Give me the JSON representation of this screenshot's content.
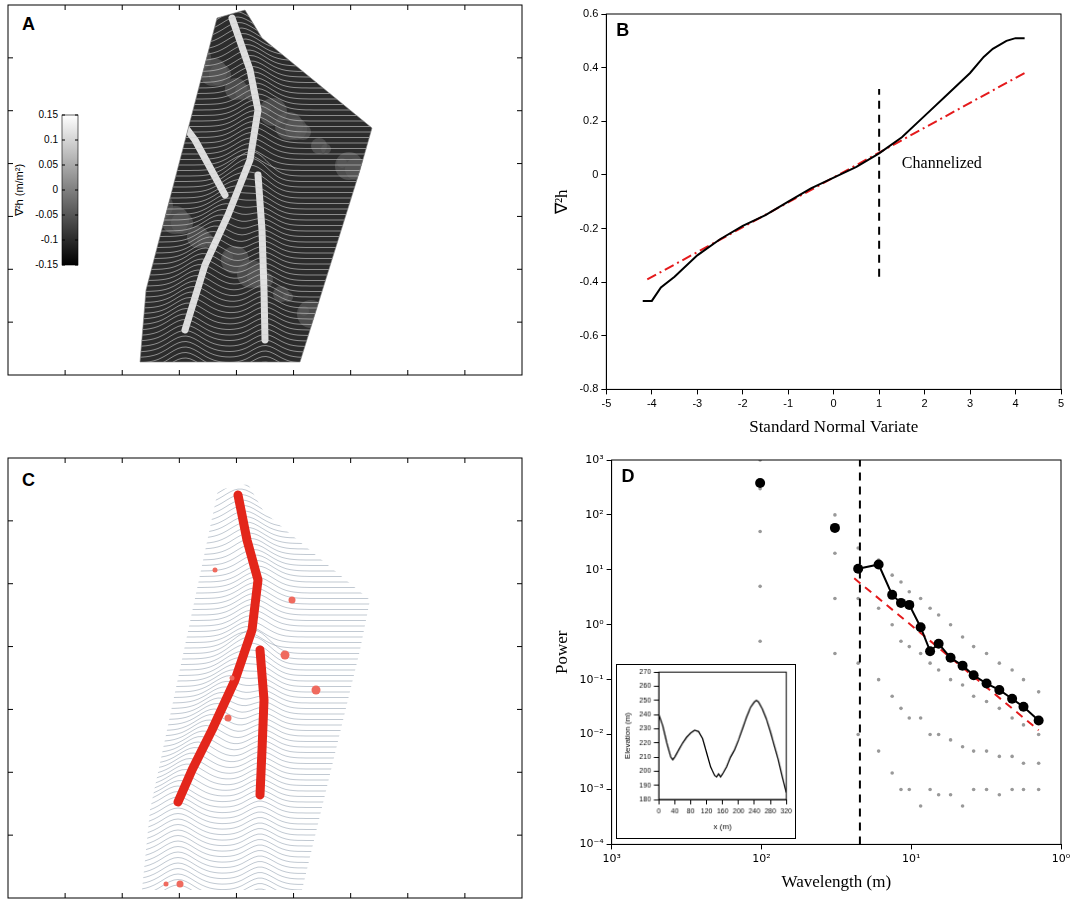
{
  "chart_data": [
    {
      "type": "line",
      "panel": "B",
      "xlabel": "Standard Normal Variate",
      "ylabel": "∇²h",
      "xlim": [
        -5,
        5
      ],
      "xticks": [
        -5,
        -4,
        -3,
        -2,
        -1,
        0,
        1,
        2,
        3,
        4,
        5
      ],
      "ylim": [
        -0.8,
        0.6
      ],
      "yticks": [
        -0.8,
        -0.6,
        -0.4,
        -0.2,
        0,
        0.2,
        0.4,
        0.6
      ],
      "grid": false,
      "series": [
        {
          "type": "line",
          "color": "#000000",
          "line_style": "solid",
          "x": [
            -4.2,
            -4.0,
            -3.8,
            -3.5,
            -3.0,
            -2.5,
            -2.0,
            -1.5,
            -1.0,
            -0.5,
            0,
            0.5,
            1.0,
            1.5,
            2.0,
            2.5,
            3.0,
            3.3,
            3.5,
            3.8,
            4.0,
            4.2
          ],
          "values": [
            -0.47,
            -0.47,
            -0.42,
            -0.38,
            -0.3,
            -0.24,
            -0.19,
            -0.15,
            -0.1,
            -0.05,
            -0.01,
            0.03,
            0.08,
            0.14,
            0.22,
            0.3,
            0.38,
            0.44,
            0.47,
            0.5,
            0.51,
            0.51
          ]
        },
        {
          "type": "line",
          "color": "#e41a1c",
          "line_style": "dashdot",
          "x": [
            -4.1,
            4.2
          ],
          "values": [
            -0.39,
            0.38
          ]
        },
        {
          "type": "line",
          "color": "#000000",
          "line_style": "dashed",
          "x": [
            1,
            1
          ],
          "values": [
            -0.38,
            0.32
          ]
        }
      ],
      "annotations": [
        {
          "text": "Channelized",
          "x": 1.5,
          "y": 0.04
        }
      ]
    },
    {
      "type": "scatter",
      "panel": "D",
      "xlabel": "Wavelength (m)",
      "ylabel": "Power",
      "log": true,
      "grid": false,
      "xlim": [
        1000,
        1
      ],
      "xticks": [
        {
          "value": 1000,
          "label": "10³"
        },
        {
          "value": 100,
          "label": "10²"
        },
        {
          "value": 10,
          "label": "10¹"
        },
        {
          "value": 1,
          "label": "10⁰"
        }
      ],
      "ylim": [
        0.0001,
        1000
      ],
      "yticks": [
        {
          "value": 0.0001,
          "label": "10⁻⁴"
        },
        {
          "value": 0.001,
          "label": "10⁻³"
        },
        {
          "value": 0.01,
          "label": "10⁻²"
        },
        {
          "value": 0.1,
          "label": "10⁻¹"
        },
        {
          "value": 1,
          "label": "10⁰"
        },
        {
          "value": 10,
          "label": "10¹"
        },
        {
          "value": 100,
          "label": "10²"
        },
        {
          "value": 1000,
          "label": "10³"
        }
      ],
      "series": [
        {
          "type": "scatter",
          "color": "#999999",
          "marker": "circle",
          "x": [
            102,
            102,
            102,
            102,
            102,
            32.3,
            32.3,
            32.3,
            32.3,
            22.6,
            22.6,
            22.6,
            22.6,
            16.5,
            16.5,
            16.5,
            16.5,
            13.4,
            13.4,
            13.4,
            13.4,
            11.7,
            11.7,
            11.7,
            11.7,
            10.3,
            10.3,
            10.3,
            10.3,
            8.65,
            8.65,
            8.65,
            8.65,
            7.48,
            7.48,
            7.48,
            7.48,
            6.56,
            6.56,
            6.56,
            6.56,
            5.46,
            5.46,
            5.46,
            5.46,
            4.54,
            4.54,
            4.54,
            4.54,
            3.83,
            3.83,
            3.83,
            3.83,
            3.14,
            3.14,
            3.14,
            3.14,
            2.58,
            2.58,
            2.58,
            2.58,
            2.12,
            2.12,
            2.12,
            2.12,
            1.78,
            1.78,
            1.78,
            1.78,
            1.41,
            1.41,
            1.41,
            1.41
          ],
          "values": [
            1000,
            300,
            50,
            5,
            0.5,
            100,
            20,
            3,
            0.3,
            25,
            3,
            0.2,
            0.01,
            15,
            2,
            0.1,
            0.005,
            8,
            1,
            0.05,
            0.002,
            6,
            0.5,
            0.03,
            0.001,
            4,
            0.4,
            0.02,
            0.001,
            3,
            0.3,
            0.02,
            0.0005,
            2,
            0.2,
            0.01,
            0.001,
            1.5,
            0.15,
            0.01,
            0.0008,
            1,
            0.1,
            0.008,
            0.0008,
            0.6,
            0.08,
            0.006,
            0.0005,
            0.4,
            0.05,
            0.005,
            0.001,
            0.3,
            0.04,
            0.005,
            0.001,
            0.2,
            0.03,
            0.004,
            0.0008,
            0.15,
            0.02,
            0.004,
            0.001,
            0.1,
            0.015,
            0.003,
            0.001,
            0.06,
            0.01,
            0.003,
            0.001
          ]
        },
        {
          "type": "line",
          "color": "#000000",
          "marker": "circle",
          "line_style": "none",
          "x": [
            102,
            32.3
          ],
          "values": [
            380,
            58
          ]
        },
        {
          "type": "line",
          "color": "#000000",
          "marker": "circle",
          "line_style": "solid",
          "x": [
            22.6,
            16.5,
            13.4,
            11.7,
            10.3,
            8.65,
            7.48,
            6.56,
            5.46,
            4.54,
            3.83,
            3.14,
            2.58,
            2.12,
            1.78,
            1.41
          ],
          "values": [
            10.5,
            12.5,
            3.5,
            2.5,
            2.3,
            0.9,
            0.33,
            0.45,
            0.25,
            0.18,
            0.12,
            0.085,
            0.065,
            0.045,
            0.032,
            0.018
          ]
        },
        {
          "type": "line",
          "color": "#e41a1c",
          "line_style": "dashed",
          "x": [
            24,
            1.41
          ],
          "values": [
            7,
            0.012
          ]
        },
        {
          "type": "line",
          "color": "#000000",
          "line_style": "dashed",
          "x": [
            22,
            22
          ],
          "values": [
            0.0001,
            1000
          ]
        }
      ],
      "inset": {
        "type": "line",
        "xlabel": "x (m)",
        "ylabel": "Elevation (m)",
        "color": "#000000",
        "xlim": [
          0,
          320
        ],
        "xticks": [
          0,
          40,
          80,
          120,
          160,
          200,
          240,
          280,
          320
        ],
        "ylim": [
          180,
          270
        ],
        "yticks": [
          180,
          190,
          200,
          210,
          220,
          230,
          240,
          250,
          260,
          270
        ],
        "grid": false,
        "x": [
          0,
          10,
          20,
          30,
          35,
          40,
          50,
          60,
          70,
          80,
          90,
          100,
          110,
          120,
          130,
          140,
          145,
          150,
          155,
          160,
          170,
          180,
          190,
          200,
          210,
          220,
          230,
          240,
          245,
          250,
          260,
          270,
          280,
          290,
          300,
          310,
          320
        ],
        "values": [
          240,
          232,
          220,
          210,
          208,
          210,
          215,
          220,
          224,
          227,
          229,
          228,
          223,
          213,
          203,
          197,
          196,
          198,
          196,
          198,
          203,
          210,
          215,
          222,
          230,
          238,
          245,
          249,
          250,
          249,
          244,
          237,
          228,
          218,
          208,
          196,
          185
        ]
      }
    }
  ],
  "maps": [
    {
      "type": "map",
      "panel": "A",
      "colorbar": {
        "label": "∇²h (m/m²)",
        "range": [
          -0.15,
          0.15
        ],
        "ticks": [
          0.15,
          0.1,
          0.05,
          0,
          -0.05,
          -0.1,
          -0.15
        ]
      }
    },
    {
      "type": "map",
      "panel": "C"
    }
  ]
}
